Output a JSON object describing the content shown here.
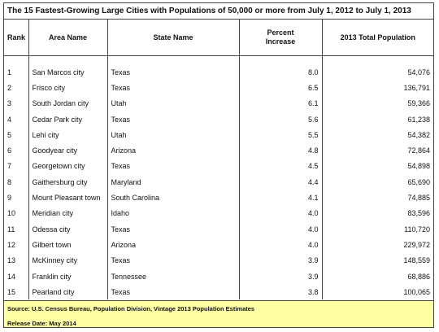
{
  "title": "The 15 Fastest-Growing Large Cities with Populations of 50,000 or more from July 1, 2012 to July 1, 2013",
  "headers": {
    "rank": "Rank",
    "area": "Area Name",
    "state": "State Name",
    "pct_line1": "Percent",
    "pct_line2": "Increase",
    "pop": "2013 Total Population"
  },
  "rows": [
    {
      "rank": "1",
      "area": "San Marcos city",
      "state": "Texas",
      "pct": "8.0",
      "pop": "54,076"
    },
    {
      "rank": "2",
      "area": "Frisco city",
      "state": "Texas",
      "pct": "6.5",
      "pop": "136,791"
    },
    {
      "rank": "3",
      "area": "South Jordan city",
      "state": "Utah",
      "pct": "6.1",
      "pop": "59,366"
    },
    {
      "rank": "4",
      "area": "Cedar Park city",
      "state": "Texas",
      "pct": "5.6",
      "pop": "61,238"
    },
    {
      "rank": "5",
      "area": "Lehi city",
      "state": "Utah",
      "pct": "5.5",
      "pop": "54,382"
    },
    {
      "rank": "6",
      "area": "Goodyear city",
      "state": "Arizona",
      "pct": "4.8",
      "pop": "72,864"
    },
    {
      "rank": "7",
      "area": "Georgetown city",
      "state": "Texas",
      "pct": "4.5",
      "pop": "54,898"
    },
    {
      "rank": "8",
      "area": "Gaithersburg city",
      "state": "Maryland",
      "pct": "4.4",
      "pop": "65,690"
    },
    {
      "rank": "9",
      "area": "Mount Pleasant town",
      "state": "South Carolina",
      "pct": "4.1",
      "pop": "74,885"
    },
    {
      "rank": "10",
      "area": "Meridian city",
      "state": "Idaho",
      "pct": "4.0",
      "pop": "83,596"
    },
    {
      "rank": "11",
      "area": "Odessa city",
      "state": "Texas",
      "pct": "4.0",
      "pop": "110,720"
    },
    {
      "rank": "12",
      "area": "Gilbert town",
      "state": "Arizona",
      "pct": "4.0",
      "pop": "229,972"
    },
    {
      "rank": "13",
      "area": "McKinney city",
      "state": "Texas",
      "pct": "3.9",
      "pop": "148,559"
    },
    {
      "rank": "14",
      "area": "Franklin city",
      "state": "Tennessee",
      "pct": "3.9",
      "pop": "68,886"
    },
    {
      "rank": "15",
      "area": "Pearland city",
      "state": "Texas",
      "pct": "3.8",
      "pop": "100,065"
    }
  ],
  "footer": {
    "source": "Source: U.S. Census Bureau, Population Division, Vintage 2013 Population Estimates",
    "release": "Release Date: May 2014"
  },
  "colors": {
    "footer_bg": "#ffffa6",
    "border": "#444444"
  }
}
